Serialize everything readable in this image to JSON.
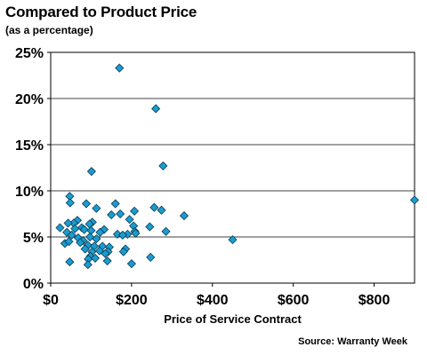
{
  "chart_data": {
    "type": "scatter",
    "title": "Compared to Product Price",
    "subtitle": "(as a percentage)",
    "xlabel": "Price of Service Contract",
    "ylabel": "",
    "source": "Source: Warranty Week",
    "xlim": [
      0,
      900
    ],
    "ylim": [
      0,
      25
    ],
    "x_ticks": [
      0,
      200,
      400,
      600,
      800
    ],
    "x_tick_labels": [
      "$0",
      "$200",
      "$400",
      "$600",
      "$800"
    ],
    "y_ticks": [
      0,
      5,
      10,
      15,
      20,
      25
    ],
    "y_tick_labels": [
      "0%",
      "5%",
      "10%",
      "15%",
      "20%",
      "25%"
    ],
    "grid": "horizontal",
    "marker": "diamond",
    "marker_color": "#1a9ccf",
    "points": [
      {
        "x": 170,
        "y": 23.3
      },
      {
        "x": 260,
        "y": 18.9
      },
      {
        "x": 278,
        "y": 12.7
      },
      {
        "x": 101,
        "y": 12.1
      },
      {
        "x": 900,
        "y": 9.0
      },
      {
        "x": 47,
        "y": 9.4
      },
      {
        "x": 48,
        "y": 8.7
      },
      {
        "x": 88,
        "y": 8.6
      },
      {
        "x": 160,
        "y": 8.6
      },
      {
        "x": 113,
        "y": 8.1
      },
      {
        "x": 256,
        "y": 8.2
      },
      {
        "x": 274,
        "y": 7.9
      },
      {
        "x": 207,
        "y": 7.8
      },
      {
        "x": 172,
        "y": 7.5
      },
      {
        "x": 150,
        "y": 7.4
      },
      {
        "x": 330,
        "y": 7.3
      },
      {
        "x": 195,
        "y": 6.9
      },
      {
        "x": 66,
        "y": 6.8
      },
      {
        "x": 103,
        "y": 6.6
      },
      {
        "x": 57,
        "y": 6.5
      },
      {
        "x": 96,
        "y": 6.4
      },
      {
        "x": 205,
        "y": 6.2
      },
      {
        "x": 23,
        "y": 6.0
      },
      {
        "x": 77,
        "y": 6.0
      },
      {
        "x": 43,
        "y": 6.5
      },
      {
        "x": 60,
        "y": 5.9
      },
      {
        "x": 83,
        "y": 5.8
      },
      {
        "x": 100,
        "y": 5.7
      },
      {
        "x": 132,
        "y": 5.8
      },
      {
        "x": 208,
        "y": 5.6
      },
      {
        "x": 285,
        "y": 5.6
      },
      {
        "x": 245,
        "y": 6.1
      },
      {
        "x": 190,
        "y": 5.3
      },
      {
        "x": 40,
        "y": 5.5
      },
      {
        "x": 52,
        "y": 5.2
      },
      {
        "x": 122,
        "y": 5.5
      },
      {
        "x": 165,
        "y": 5.3
      },
      {
        "x": 178,
        "y": 5.2
      },
      {
        "x": 210,
        "y": 5.4
      },
      {
        "x": 68,
        "y": 4.9
      },
      {
        "x": 80,
        "y": 4.6
      },
      {
        "x": 97,
        "y": 5.0
      },
      {
        "x": 113,
        "y": 4.8
      },
      {
        "x": 73,
        "y": 4.4
      },
      {
        "x": 35,
        "y": 4.3
      },
      {
        "x": 45,
        "y": 4.5
      },
      {
        "x": 92,
        "y": 4.1
      },
      {
        "x": 108,
        "y": 4.0
      },
      {
        "x": 128,
        "y": 4.0
      },
      {
        "x": 145,
        "y": 3.9
      },
      {
        "x": 185,
        "y": 3.7
      },
      {
        "x": 85,
        "y": 3.7
      },
      {
        "x": 121,
        "y": 3.5
      },
      {
        "x": 142,
        "y": 3.4
      },
      {
        "x": 102,
        "y": 3.4
      },
      {
        "x": 180,
        "y": 3.4
      },
      {
        "x": 135,
        "y": 3.2
      },
      {
        "x": 98,
        "y": 2.9
      },
      {
        "x": 110,
        "y": 2.7
      },
      {
        "x": 93,
        "y": 2.6
      },
      {
        "x": 247,
        "y": 2.8
      },
      {
        "x": 140,
        "y": 2.4
      },
      {
        "x": 47,
        "y": 2.3
      },
      {
        "x": 92,
        "y": 2.0
      },
      {
        "x": 200,
        "y": 2.1
      },
      {
        "x": 450,
        "y": 4.7
      }
    ]
  }
}
